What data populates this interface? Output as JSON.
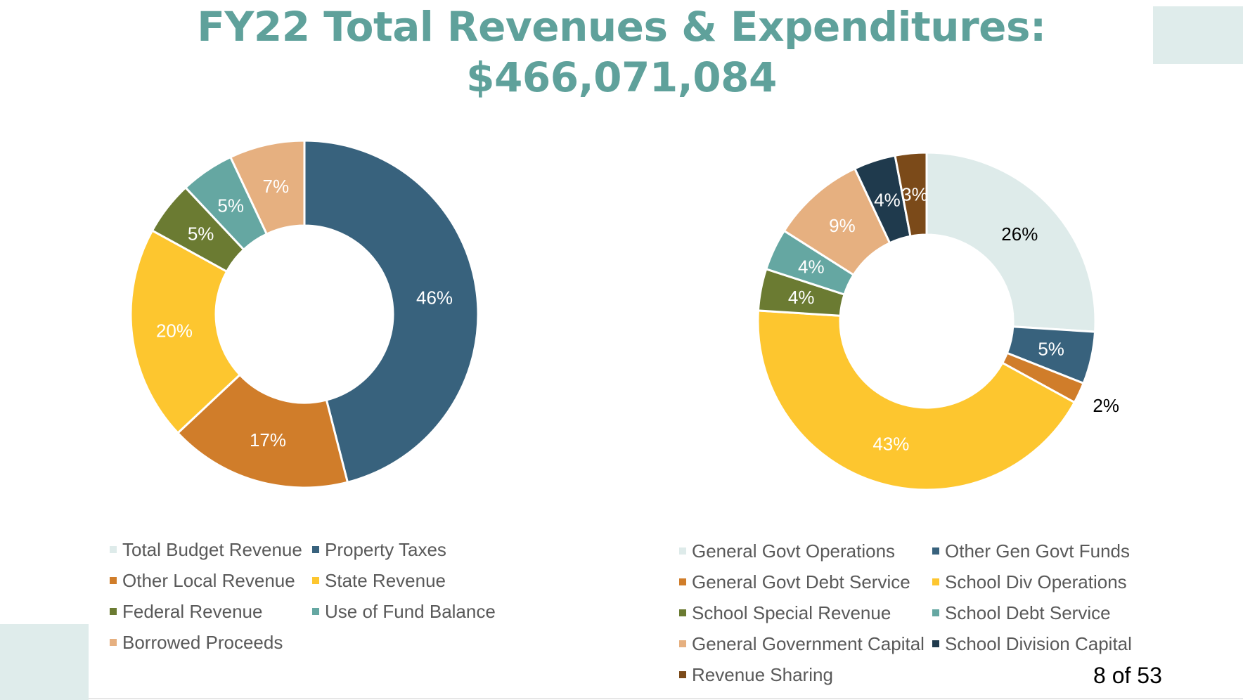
{
  "slide": {
    "title_line1": "FY22 Total Revenues & Expenditures:",
    "title_line2": "$466,071,084",
    "page_number": "8 of 53"
  },
  "chart_data": [
    {
      "type": "pie",
      "donut": true,
      "categories": [
        "Total Budget Revenue",
        "Property Taxes",
        "Other Local Revenue",
        "State Revenue",
        "Federal Revenue",
        "Use of Fund Balance",
        "Borrowed Proceeds"
      ],
      "values": [
        0,
        46,
        17,
        20,
        5,
        5,
        7
      ],
      "labels": [
        "",
        "46%",
        "17%",
        "20%",
        "5%",
        "5%",
        "7%"
      ],
      "colors": [
        "#deebea",
        "#38627d",
        "#d07d2a",
        "#fdc62f",
        "#6b7b32",
        "#65a7a2",
        "#e6b080"
      ],
      "label_colors": [
        "#000000",
        "#ffffff",
        "#ffffff",
        "#ffffff",
        "#ffffff",
        "#ffffff",
        "#ffffff"
      ],
      "legend_position": "bottom"
    },
    {
      "type": "pie",
      "donut": true,
      "categories": [
        "General Govt Operations",
        "Other Gen Govt Funds",
        "General Govt Debt Service",
        "School Div Operations",
        "School Special Revenue",
        "School Debt Service",
        "General Government Capital",
        "School Division Capital",
        "Revenue Sharing"
      ],
      "values": [
        26,
        5,
        2,
        43,
        4,
        4,
        9,
        4,
        3
      ],
      "labels": [
        "26%",
        "5%",
        "2%",
        "43%",
        "4%",
        "4%",
        "9%",
        "4%",
        "3%"
      ],
      "colors": [
        "#deebea",
        "#38627d",
        "#d07d2a",
        "#fdc62f",
        "#6b7b32",
        "#65a7a2",
        "#e6b080",
        "#1f3a4d",
        "#7b4a19"
      ],
      "label_colors": [
        "#000000",
        "#ffffff",
        "#000000",
        "#ffffff",
        "#ffffff",
        "#ffffff",
        "#ffffff",
        "#ffffff",
        "#ffffff"
      ],
      "legend_position": "bottom"
    }
  ]
}
